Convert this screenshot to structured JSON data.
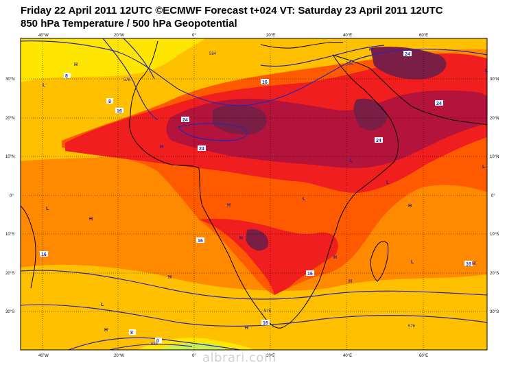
{
  "title": {
    "line1": "Friday 22 April 2011 12UTC ©ECMWF Forecast t+024 VT: Saturday 23 April 2011 12UTC",
    "line2": "850 hPa Temperature / 500 hPa Geopotential"
  },
  "watermark": "albrari.com",
  "axes": {
    "top": [
      "40°W",
      "20°W",
      "0°",
      "20°E",
      "40°E",
      "60°E"
    ],
    "bottom": [
      "40°W",
      "20°W",
      "0°",
      "20°E",
      "40°E",
      "60°E"
    ],
    "left": [
      "30°N",
      "20°N",
      "10°N",
      "0°",
      "10°S",
      "20°S",
      "30°S"
    ],
    "right": [
      "30°N",
      "20°N",
      "10°N",
      "0°",
      "10°S",
      "20°S",
      "30°S"
    ]
  },
  "temperature_labels": [
    "8",
    "8",
    "16",
    "24",
    "24",
    "16",
    "24",
    "24",
    "16",
    "16",
    "16",
    "16",
    "16",
    "8",
    "0"
  ],
  "geopotential_labels": [
    "584",
    "584",
    "576",
    "576",
    "576",
    "584"
  ],
  "pressure_markers": [
    "H",
    "L",
    "H",
    "H",
    "H",
    "L",
    "H",
    "L",
    "H",
    "L",
    "H",
    "H",
    "L",
    "H",
    "L",
    "H",
    "H",
    "L",
    "H",
    "L",
    "L",
    "H"
  ],
  "colors": {
    "yellow": "#ffe600",
    "light_orange": "#ffc000",
    "orange": "#ff8a00",
    "orange_red": "#ff5a00",
    "red": "#f01e1e",
    "dark_red": "#b4143c",
    "maroon": "#7a1e46",
    "contour": "#2828b4",
    "coastline": "#000000",
    "grid": "#000000"
  }
}
